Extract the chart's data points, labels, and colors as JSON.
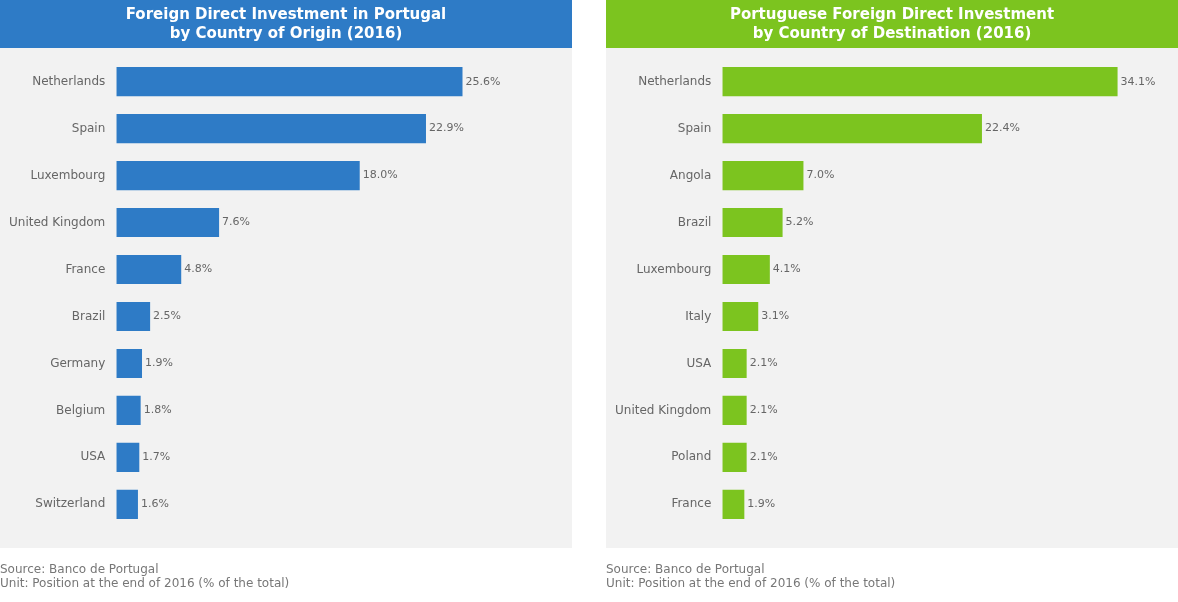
{
  "chart_data": [
    {
      "type": "bar",
      "orientation": "horizontal",
      "title": "Foreign Direct Investment in Portugal\nby Country of Origin (2016)",
      "categories": [
        "Netherlands",
        "Spain",
        "Luxembourg",
        "United Kingdom",
        "France",
        "Brazil",
        "Germany",
        "Belgium",
        "USA",
        "Switzerland"
      ],
      "values": [
        25.6,
        22.9,
        18.0,
        7.6,
        4.8,
        2.5,
        1.9,
        1.8,
        1.7,
        1.6
      ],
      "value_labels": [
        "25.6%",
        "22.9%",
        "18.0%",
        "7.6%",
        "4.8%",
        "2.5%",
        "1.9%",
        "1.8%",
        "1.7%",
        "1.6%"
      ],
      "color": "#2e7bc6",
      "grid": false,
      "legend": false,
      "tick_labels": "y",
      "annotations": [
        "Source: Banco de Portugal",
        "Unit: Position at the end of 2016 (% of the total)"
      ]
    },
    {
      "type": "bar",
      "orientation": "horizontal",
      "title": "Portuguese Foreign Direct Investment\nby Country of Destination (2016)",
      "categories": [
        "Netherlands",
        "Spain",
        "Angola",
        "Brazil",
        "Luxembourg",
        "Italy",
        "USA",
        "United Kingdom",
        "Poland",
        "France"
      ],
      "values": [
        34.1,
        22.4,
        7.0,
        5.2,
        4.1,
        3.1,
        2.1,
        2.1,
        2.1,
        1.9
      ],
      "value_labels": [
        "34.1%",
        "22.4%",
        "7.0%",
        "5.2%",
        "4.1%",
        "3.1%",
        "2.1%",
        "2.1%",
        "2.1%",
        "1.9%"
      ],
      "color": "#7cc41f",
      "grid": false,
      "legend": false,
      "tick_labels": "y",
      "annotations": [
        "Source: Banco de Portugal",
        "Unit: Position at the end of 2016 (% of the total)"
      ]
    }
  ]
}
